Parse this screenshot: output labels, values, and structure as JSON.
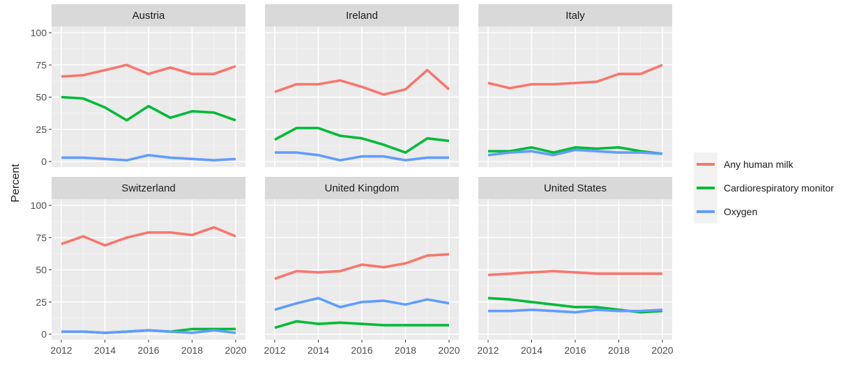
{
  "chart_data": {
    "type": "line",
    "ylabel": "Percent",
    "ylim": [
      0,
      100
    ],
    "xlim": [
      2012,
      2020
    ],
    "x_ticks": [
      2012,
      2014,
      2016,
      2018,
      2020
    ],
    "y_ticks": [
      0,
      25,
      50,
      75,
      100
    ],
    "grid": true,
    "legend_position": "right",
    "legend": [
      {
        "name": "Any human milk",
        "color": "#F8766D"
      },
      {
        "name": "Cardiorespiratory monitor",
        "color": "#00BA38"
      },
      {
        "name": "Oxygen",
        "color": "#619CFF"
      }
    ],
    "x": [
      2012,
      2013,
      2014,
      2015,
      2016,
      2017,
      2018,
      2019,
      2020
    ],
    "panels": [
      {
        "title": "Austria",
        "series": [
          {
            "name": "Any human milk",
            "values": [
              66,
              67,
              71,
              75,
              68,
              73,
              68,
              68,
              74
            ]
          },
          {
            "name": "Cardiorespiratory monitor",
            "values": [
              50,
              49,
              42,
              32,
              43,
              34,
              39,
              38,
              32
            ]
          },
          {
            "name": "Oxygen",
            "values": [
              3,
              3,
              2,
              1,
              5,
              3,
              2,
              1,
              2
            ]
          }
        ]
      },
      {
        "title": "Ireland",
        "series": [
          {
            "name": "Any human milk",
            "values": [
              54,
              60,
              60,
              63,
              58,
              52,
              56,
              71,
              56
            ]
          },
          {
            "name": "Cardiorespiratory monitor",
            "values": [
              17,
              26,
              26,
              20,
              18,
              13,
              7,
              18,
              16
            ]
          },
          {
            "name": "Oxygen",
            "values": [
              7,
              7,
              5,
              1,
              4,
              4,
              1,
              3,
              3
            ]
          }
        ]
      },
      {
        "title": "Italy",
        "series": [
          {
            "name": "Any human milk",
            "values": [
              61,
              57,
              60,
              60,
              61,
              62,
              68,
              68,
              75
            ]
          },
          {
            "name": "Cardiorespiratory monitor",
            "values": [
              8,
              8,
              11,
              7,
              11,
              10,
              11,
              8,
              6
            ]
          },
          {
            "name": "Oxygen",
            "values": [
              5,
              7,
              8,
              5,
              9,
              8,
              7,
              7,
              6
            ]
          }
        ]
      },
      {
        "title": "Switzerland",
        "series": [
          {
            "name": "Any human milk",
            "values": [
              70,
              76,
              69,
              75,
              79,
              79,
              77,
              83,
              76
            ]
          },
          {
            "name": "Cardiorespiratory monitor",
            "values": [
              2,
              2,
              1,
              2,
              3,
              2,
              4,
              4,
              4
            ]
          },
          {
            "name": "Oxygen",
            "values": [
              2,
              2,
              1,
              2,
              3,
              2,
              1,
              3,
              1
            ]
          }
        ]
      },
      {
        "title": "United Kingdom",
        "series": [
          {
            "name": "Any human milk",
            "values": [
              43,
              49,
              48,
              49,
              54,
              52,
              55,
              61,
              62
            ]
          },
          {
            "name": "Cardiorespiratory monitor",
            "values": [
              5,
              10,
              8,
              9,
              8,
              7,
              7,
              7,
              7
            ]
          },
          {
            "name": "Oxygen",
            "values": [
              19,
              24,
              28,
              21,
              25,
              26,
              23,
              27,
              24
            ]
          }
        ]
      },
      {
        "title": "United States",
        "series": [
          {
            "name": "Any human milk",
            "values": [
              46,
              47,
              48,
              49,
              48,
              47,
              47,
              47,
              47
            ]
          },
          {
            "name": "Cardiorespiratory monitor",
            "values": [
              28,
              27,
              25,
              23,
              21,
              21,
              19,
              17,
              18
            ]
          },
          {
            "name": "Oxygen",
            "values": [
              18,
              18,
              19,
              18,
              17,
              19,
              18,
              18,
              19
            ]
          }
        ]
      }
    ]
  }
}
